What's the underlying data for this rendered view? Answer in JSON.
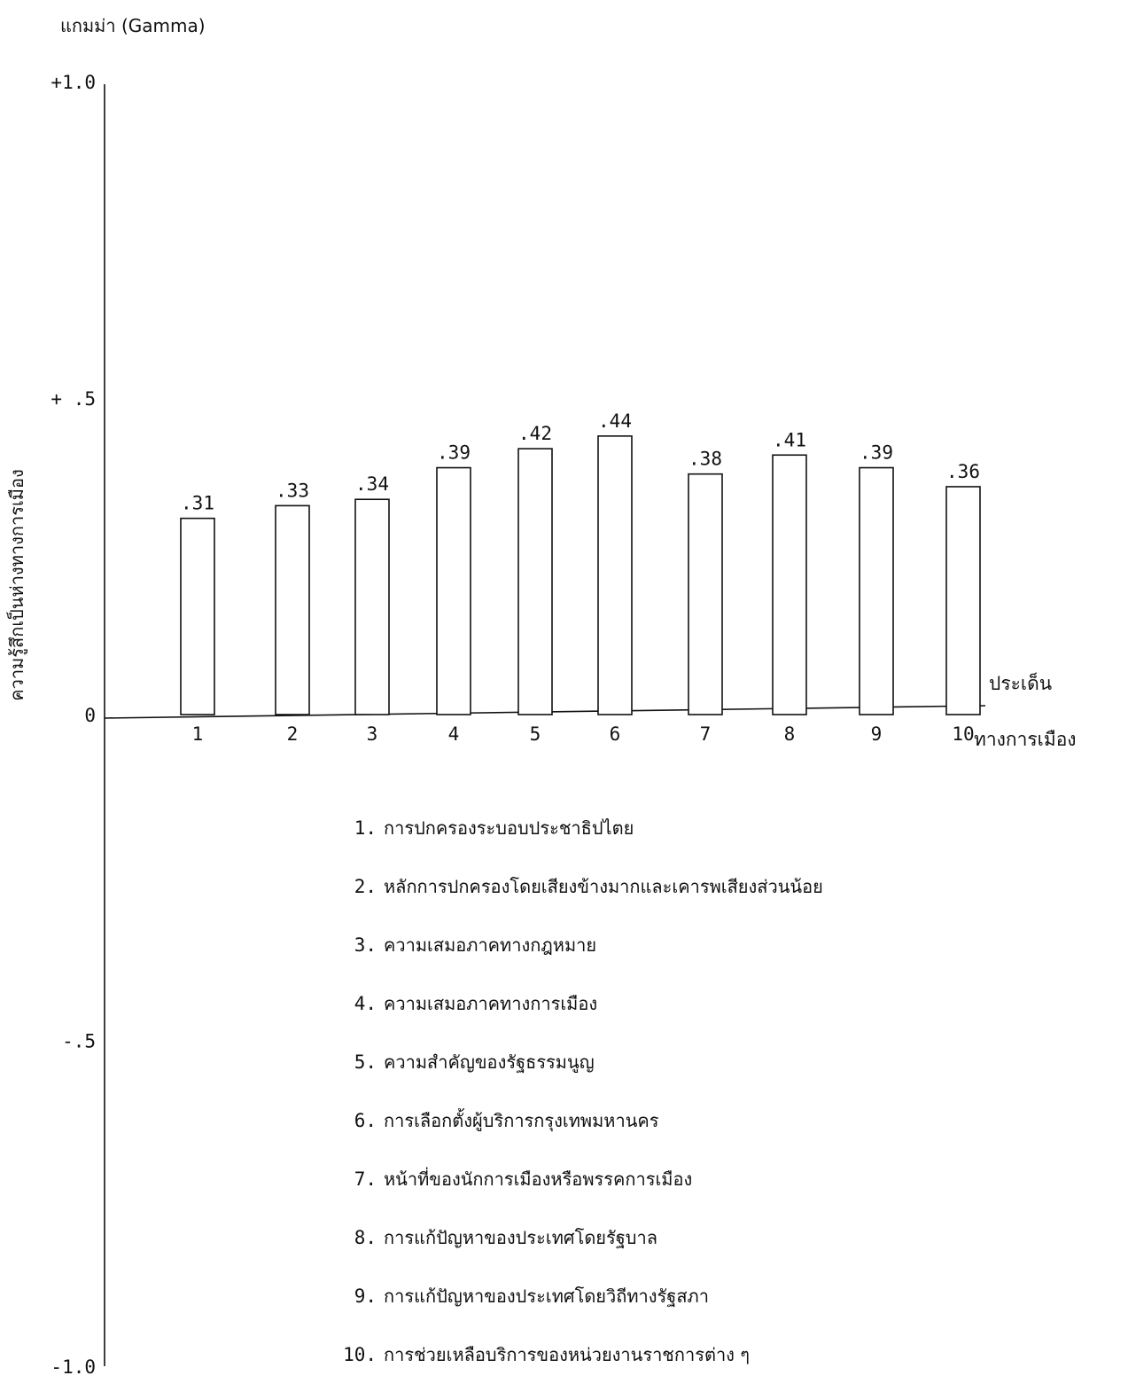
{
  "chart_data": {
    "type": "bar",
    "ylabel_top": "แกมม่า   (Gamma)",
    "ylabel_side": "ความรู้สึกเป็นห่างทางการเมือง",
    "xlabel_line1": "ประเด็น",
    "xlabel_line2": "ทางการเมือง",
    "ylim": [
      -1.0,
      1.0
    ],
    "yticks": [
      {
        "value": 1.0,
        "label": "+1.0"
      },
      {
        "value": 0.5,
        "label": "+ .5"
      },
      {
        "value": 0,
        "label": "0"
      },
      {
        "value": -0.5,
        "label": "-.5"
      },
      {
        "value": -1.0,
        "label": "-1.0"
      }
    ],
    "categories": [
      "1",
      "2",
      "3",
      "4",
      "5",
      "6",
      "7",
      "8",
      "9",
      "10"
    ],
    "values": [
      0.31,
      0.33,
      0.34,
      0.39,
      0.42,
      0.44,
      0.38,
      0.41,
      0.39,
      0.36
    ],
    "value_labels": [
      ".31",
      ".33",
      ".34",
      ".39",
      ".42",
      ".44",
      ".38",
      ".41",
      ".39",
      ".36"
    ],
    "grid": false,
    "legend": [
      {
        "num": "1.",
        "text": "การปกครองระบอบประชาธิปไตย"
      },
      {
        "num": "2.",
        "text": "หลักการปกครองโดยเสียงข้างมากและเคารพเสียงส่วนน้อย"
      },
      {
        "num": "3.",
        "text": "ความเสมอภาคทางกฎหมาย"
      },
      {
        "num": "4.",
        "text": "ความเสมอภาคทางการเมือง"
      },
      {
        "num": "5.",
        "text": "ความสำคัญของรัฐธรรมนูญ"
      },
      {
        "num": "6.",
        "text": "การเลือกตั้งผู้บริการกรุงเทพมหานคร"
      },
      {
        "num": "7.",
        "text": "หน้าที่ของนักการเมืองหรือพรรคการเมือง"
      },
      {
        "num": "8.",
        "text": "การแก้ปัญหาของประเทศโดยรัฐบาล"
      },
      {
        "num": "9.",
        "text": "การแก้ปัญหาของประเทศโดยวิถีทางรัฐสภา"
      },
      {
        "num": "10.",
        "text": "การช่วยเหลือบริการของหน่วยงานราชการต่าง ๆ"
      }
    ]
  }
}
